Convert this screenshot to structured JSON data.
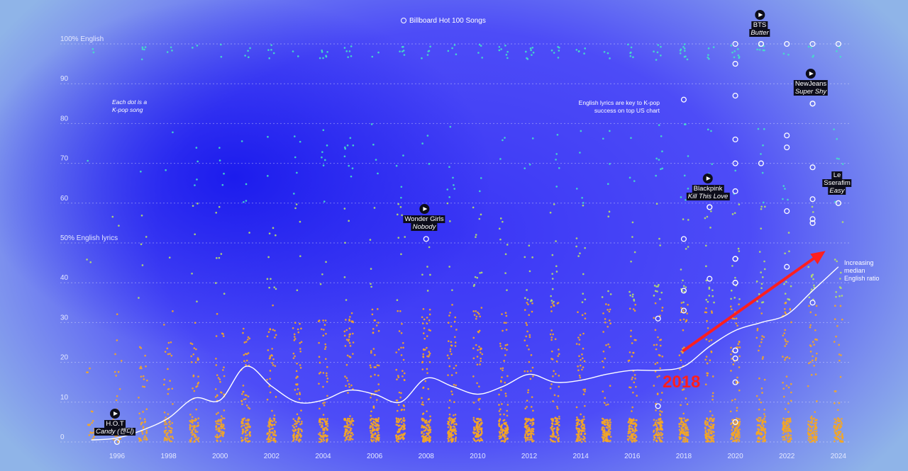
{
  "chart_data": {
    "type": "scatter",
    "legend": "Billboard Hot 100 Songs",
    "subtitle_note": "Each dot is a\nK-pop song",
    "headline_note": "English lyrics are key to K-pop\nsuccess on top US chart",
    "median_label": "Increasing\nmedian\nEnglish ratio",
    "annotation_year": "2018",
    "y_ticks": [
      "0",
      "10",
      "20",
      "30",
      "40",
      "50% English lyrics",
      "60",
      "70",
      "80",
      "90",
      "100% English"
    ],
    "y_tick_values": [
      0,
      10,
      20,
      30,
      40,
      50,
      60,
      70,
      80,
      90,
      100
    ],
    "x_ticks": [
      "1996",
      "1998",
      "2000",
      "2002",
      "2004",
      "2006",
      "2008",
      "2010",
      "2012",
      "2014",
      "2016",
      "2018",
      "2020",
      "2022",
      "2024"
    ],
    "x_tick_values": [
      1996,
      1998,
      2000,
      2002,
      2004,
      2006,
      2008,
      2010,
      2012,
      2014,
      2016,
      2018,
      2020,
      2022,
      2024
    ],
    "xlim": [
      1994.9,
      2024.5
    ],
    "ylim": [
      0,
      100
    ],
    "median": {
      "x": [
        1995,
        1996,
        1997,
        1998,
        1999,
        2000,
        2001,
        2002,
        2003,
        2004,
        2005,
        2006,
        2007,
        2008,
        2009,
        2010,
        2011,
        2012,
        2013,
        2014,
        2015,
        2016,
        2017,
        2018,
        2019,
        2020,
        2021,
        2022,
        2023,
        2024
      ],
      "y": [
        0.5,
        1,
        3,
        6,
        11,
        10.5,
        19,
        14,
        10,
        10.5,
        13,
        12,
        10,
        16,
        14,
        12,
        14,
        17,
        15,
        15.5,
        17,
        18,
        18,
        19,
        24,
        28,
        30,
        32,
        38,
        44
      ]
    },
    "highlighted_songs": [
      {
        "artist": "H.O.T",
        "title": "Candy (캔디)",
        "x": 1996,
        "y": 0
      },
      {
        "artist": "Wonder Girls",
        "title": "Nobody",
        "x": 2008,
        "y": 51
      },
      {
        "artist": "Blackpink",
        "title": "Kill This Love",
        "x": 2019,
        "y": 59
      },
      {
        "artist": "BTS",
        "title": "Butter",
        "x": 2021,
        "y": 100
      },
      {
        "artist": "NewJeans",
        "title": "Super Shy",
        "x": 2023,
        "y": 85
      },
      {
        "artist": "Le Sserafim",
        "title": "Easy",
        "x": 2024,
        "y": 60
      }
    ],
    "song_label_lines": {
      "hot_artist": "H.O.T",
      "hot_title": "Candy (캔디)",
      "wg_artist": "Wonder Girls",
      "wg_title": "Nobody",
      "bp_artist": "Blackpink",
      "bp_title": "Kill This Love",
      "bts_artist": "BTS",
      "bts_title": "Butter",
      "nj_artist": "NewJeans",
      "nj_title": "Super Shy",
      "le_artist_1": "Le",
      "le_artist_2": "Sserafim",
      "le_title": "Easy"
    },
    "highlight_rings": [
      {
        "x": 2018,
        "y": 86
      },
      {
        "x": 2018,
        "y": 51
      },
      {
        "x": 2018,
        "y": 38
      },
      {
        "x": 2018,
        "y": 33
      },
      {
        "x": 2017,
        "y": 31
      },
      {
        "x": 2017,
        "y": 9
      },
      {
        "x": 2019,
        "y": 41
      },
      {
        "x": 2019,
        "y": 59
      },
      {
        "x": 2020,
        "y": 100
      },
      {
        "x": 2020,
        "y": 95
      },
      {
        "x": 2020,
        "y": 87
      },
      {
        "x": 2020,
        "y": 76
      },
      {
        "x": 2020,
        "y": 70
      },
      {
        "x": 2020,
        "y": 63
      },
      {
        "x": 2020,
        "y": 46
      },
      {
        "x": 2020,
        "y": 46
      },
      {
        "x": 2020,
        "y": 40
      },
      {
        "x": 2020,
        "y": 40
      },
      {
        "x": 2020,
        "y": 23
      },
      {
        "x": 2020,
        "y": 23
      },
      {
        "x": 2020,
        "y": 21
      },
      {
        "x": 2020,
        "y": 15
      },
      {
        "x": 2020,
        "y": 5
      },
      {
        "x": 2021,
        "y": 100
      },
      {
        "x": 2021,
        "y": 70
      },
      {
        "x": 2022,
        "y": 100
      },
      {
        "x": 2022,
        "y": 77
      },
      {
        "x": 2022,
        "y": 74
      },
      {
        "x": 2022,
        "y": 58
      },
      {
        "x": 2022,
        "y": 44
      },
      {
        "x": 2023,
        "y": 100
      },
      {
        "x": 2023,
        "y": 85
      },
      {
        "x": 2023,
        "y": 69
      },
      {
        "x": 2023,
        "y": 61
      },
      {
        "x": 2023,
        "y": 56
      },
      {
        "x": 2023,
        "y": 55
      },
      {
        "x": 2023,
        "y": 35
      },
      {
        "x": 2024,
        "y": 100
      },
      {
        "x": 2024,
        "y": 60
      }
    ],
    "trend_arrow": {
      "from": {
        "x": 2018,
        "y": 23
      },
      "to": {
        "x": 2023.5,
        "y": 48
      }
    },
    "colors": {
      "low": "#f5a623",
      "mid": "#b8e06a",
      "high": "#45e0c8",
      "median": "#ffffff",
      "arrow": "#ff1f1f"
    },
    "grid": true,
    "song_dot_density_per_year": {
      "x": [
        1995,
        1996,
        1997,
        1998,
        1999,
        2000,
        2001,
        2002,
        2003,
        2004,
        2005,
        2006,
        2007,
        2008,
        2009,
        2010,
        2011,
        2012,
        2013,
        2014,
        2015,
        2016,
        2017,
        2018,
        2019,
        2020,
        2021,
        2022,
        2023,
        2024
      ],
      "count": [
        25,
        30,
        55,
        70,
        90,
        95,
        110,
        115,
        110,
        120,
        130,
        135,
        130,
        150,
        140,
        140,
        135,
        140,
        130,
        135,
        135,
        140,
        140,
        150,
        150,
        145,
        140,
        135,
        130,
        110
      ]
    }
  }
}
